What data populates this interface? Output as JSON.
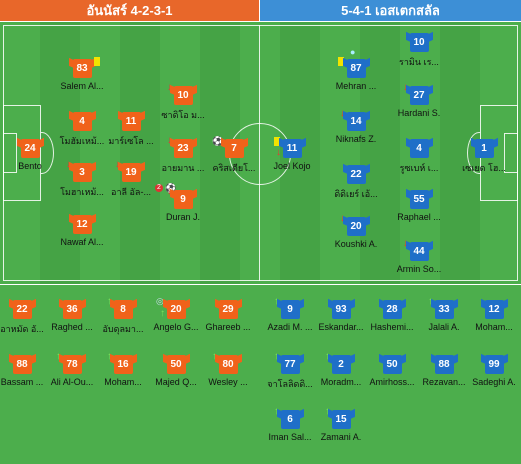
{
  "home": {
    "header": "อันนัสร์ 4-2-3-1",
    "color": "#f0621a",
    "lineup": [
      {
        "num": "24",
        "name": "Bento"
      },
      {
        "num": "83",
        "name": "Salem Al..."
      },
      {
        "num": "4",
        "name": "โมฮัมเหม้..."
      },
      {
        "num": "3",
        "name": "โมฮาเหม้..."
      },
      {
        "num": "12",
        "name": "Nawaf Al..."
      },
      {
        "num": "11",
        "name": "มาร์เซโล ..."
      },
      {
        "num": "19",
        "name": "อาลี อัล-..."
      },
      {
        "num": "10",
        "name": "ซาดิโอ ม..."
      },
      {
        "num": "23",
        "name": "อายมาน ..."
      },
      {
        "num": "9",
        "name": "Duran J."
      },
      {
        "num": "7",
        "name": "คริสเตียโ..."
      }
    ],
    "bench": [
      {
        "num": "22",
        "name": "อาหมัด อั..."
      },
      {
        "num": "36",
        "name": "Raghed ..."
      },
      {
        "num": "8",
        "name": "อับดุลมา..."
      },
      {
        "num": "20",
        "name": "Angelo G..."
      },
      {
        "num": "29",
        "name": "Ghareeb ..."
      },
      {
        "num": "88",
        "name": "Bassam ..."
      },
      {
        "num": "78",
        "name": "Ali Al-Ou..."
      },
      {
        "num": "16",
        "name": "Moham..."
      },
      {
        "num": "50",
        "name": "Majed Q..."
      },
      {
        "num": "80",
        "name": "Wesley ..."
      }
    ]
  },
  "away": {
    "header": "5-4-1 เอสเตกสลัล",
    "color": "#1f6fc8",
    "lineup": [
      {
        "num": "1",
        "name": "เซเยด โฮ..."
      },
      {
        "num": "10",
        "name": "รามิน เร..."
      },
      {
        "num": "27",
        "name": "Hardani S."
      },
      {
        "num": "4",
        "name": "รูซเบห์ เ..."
      },
      {
        "num": "55",
        "name": "Raphael ..."
      },
      {
        "num": "44",
        "name": "Armin So..."
      },
      {
        "num": "87",
        "name": "Mehran ..."
      },
      {
        "num": "14",
        "name": "Niknafs Z."
      },
      {
        "num": "22",
        "name": "ดิดิเยร์ เอ้..."
      },
      {
        "num": "20",
        "name": "Koushki A."
      },
      {
        "num": "11",
        "name": "Joel Kojo"
      }
    ],
    "bench": [
      {
        "num": "9",
        "name": "Azadi M. ..."
      },
      {
        "num": "93",
        "name": "Eskandar..."
      },
      {
        "num": "28",
        "name": "Hashemi..."
      },
      {
        "num": "33",
        "name": "Jalali A."
      },
      {
        "num": "12",
        "name": "Moham..."
      },
      {
        "num": "77",
        "name": "จาโลลิดดิ..."
      },
      {
        "num": "2",
        "name": "Moradm..."
      },
      {
        "num": "50",
        "name": "Amirhoss..."
      },
      {
        "num": "88",
        "name": "Rezavan..."
      },
      {
        "num": "99",
        "name": "Sadeghi A."
      },
      {
        "num": "6",
        "name": "Iman Sal..."
      },
      {
        "num": "15",
        "name": "Zamani A."
      }
    ]
  },
  "goal_badge": "2"
}
